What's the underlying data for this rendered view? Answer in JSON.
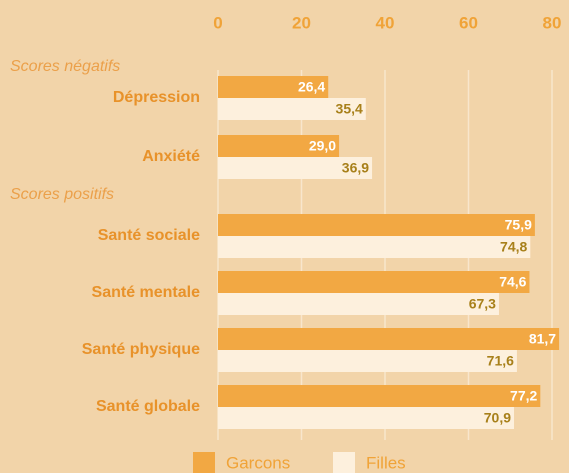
{
  "chart_data": {
    "type": "bar",
    "orientation": "horizontal",
    "groups": [
      {
        "name": "Scores négatifs",
        "categories": [
          "Dépression",
          "Anxiété"
        ]
      },
      {
        "name": "Scores positifs",
        "categories": [
          "Santé sociale",
          "Santé mentale",
          "Santé physique",
          "Santé globale"
        ]
      }
    ],
    "series": [
      {
        "name": "Garcons",
        "color": "#f2a843",
        "values": [
          26.4,
          29.0,
          75.9,
          74.6,
          81.7,
          77.2
        ],
        "value_labels": [
          "26,4",
          "29,0",
          "75,9",
          "74,6",
          "81,7",
          "77,2"
        ]
      },
      {
        "name": "Filles",
        "color": "#fdf0dd",
        "values": [
          35.4,
          36.9,
          74.8,
          67.3,
          71.6,
          70.9
        ],
        "value_labels": [
          "35,4",
          "36,9",
          "74,8",
          "67,3",
          "71,6",
          "70,9"
        ]
      }
    ],
    "xlim": [
      0,
      80
    ],
    "xticks": [
      0,
      20,
      40,
      60,
      80
    ],
    "grid": true
  }
}
